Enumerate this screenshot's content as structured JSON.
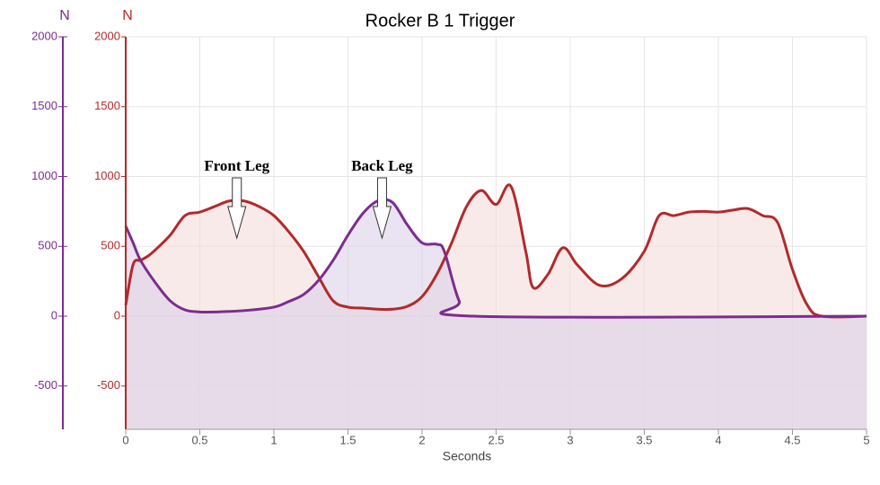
{
  "chart_data": {
    "type": "area",
    "title": "Rocker B 1 Trigger",
    "x_label": "Seconds",
    "y_label": "N",
    "y2_label": "N",
    "xlim": [
      0,
      5
    ],
    "xticks": [
      0,
      0.5,
      1,
      1.5,
      2,
      2.5,
      3,
      3.5,
      4,
      4.5,
      5
    ],
    "ylim": [
      -810,
      2000
    ],
    "yticks": [
      -500,
      0,
      500,
      1000,
      1500,
      2000
    ],
    "y2lim": [
      -810,
      2000
    ],
    "y2ticks": [
      -500,
      0,
      500,
      1000,
      1500,
      2000
    ],
    "grid": true,
    "series": [
      {
        "name": "Rocker B 1 Trigger",
        "color": "#b22a2a",
        "fill": "#f5dcdc",
        "x": [
          0,
          0.05,
          0.1,
          0.15,
          0.2,
          0.3,
          0.4,
          0.5,
          0.6,
          0.7,
          0.8,
          0.9,
          1.0,
          1.1,
          1.2,
          1.3,
          1.4,
          1.5,
          1.6,
          1.7,
          1.8,
          1.9,
          2.0,
          2.1,
          2.2,
          2.3,
          2.4,
          2.5,
          2.6,
          2.7,
          2.75,
          2.85,
          2.95,
          3.05,
          3.2,
          3.35,
          3.5,
          3.6,
          3.7,
          3.8,
          3.9,
          4.0,
          4.1,
          4.2,
          4.3,
          4.4,
          4.5,
          4.6,
          4.7,
          5.0
        ],
        "values": [
          80,
          370,
          400,
          430,
          475,
          580,
          720,
          745,
          785,
          825,
          825,
          785,
          720,
          605,
          465,
          285,
          110,
          65,
          58,
          50,
          50,
          70,
          140,
          300,
          525,
          785,
          900,
          800,
          930,
          465,
          205,
          300,
          490,
          365,
          220,
          270,
          465,
          720,
          720,
          745,
          750,
          745,
          760,
          770,
          720,
          670,
          335,
          80,
          0,
          0
        ]
      },
      {
        "name": "Back",
        "color": "#7b2d8e",
        "fill": "#dcd0e8",
        "axis": "y2",
        "x": [
          0,
          0.05,
          0.1,
          0.2,
          0.3,
          0.4,
          0.5,
          0.6,
          0.8,
          1.0,
          1.1,
          1.2,
          1.3,
          1.4,
          1.5,
          1.6,
          1.7,
          1.8,
          1.9,
          2.0,
          2.1,
          2.15,
          2.25,
          2.35,
          5.0
        ],
        "values": [
          645,
          525,
          400,
          240,
          110,
          45,
          30,
          30,
          40,
          65,
          105,
          155,
          255,
          400,
          580,
          735,
          825,
          815,
          655,
          525,
          515,
          465,
          110,
          0,
          0
        ]
      }
    ],
    "annotations": [
      {
        "text": "Front Leg",
        "x": 0.75
      },
      {
        "text": "Back Leg",
        "x": 1.73
      }
    ]
  }
}
